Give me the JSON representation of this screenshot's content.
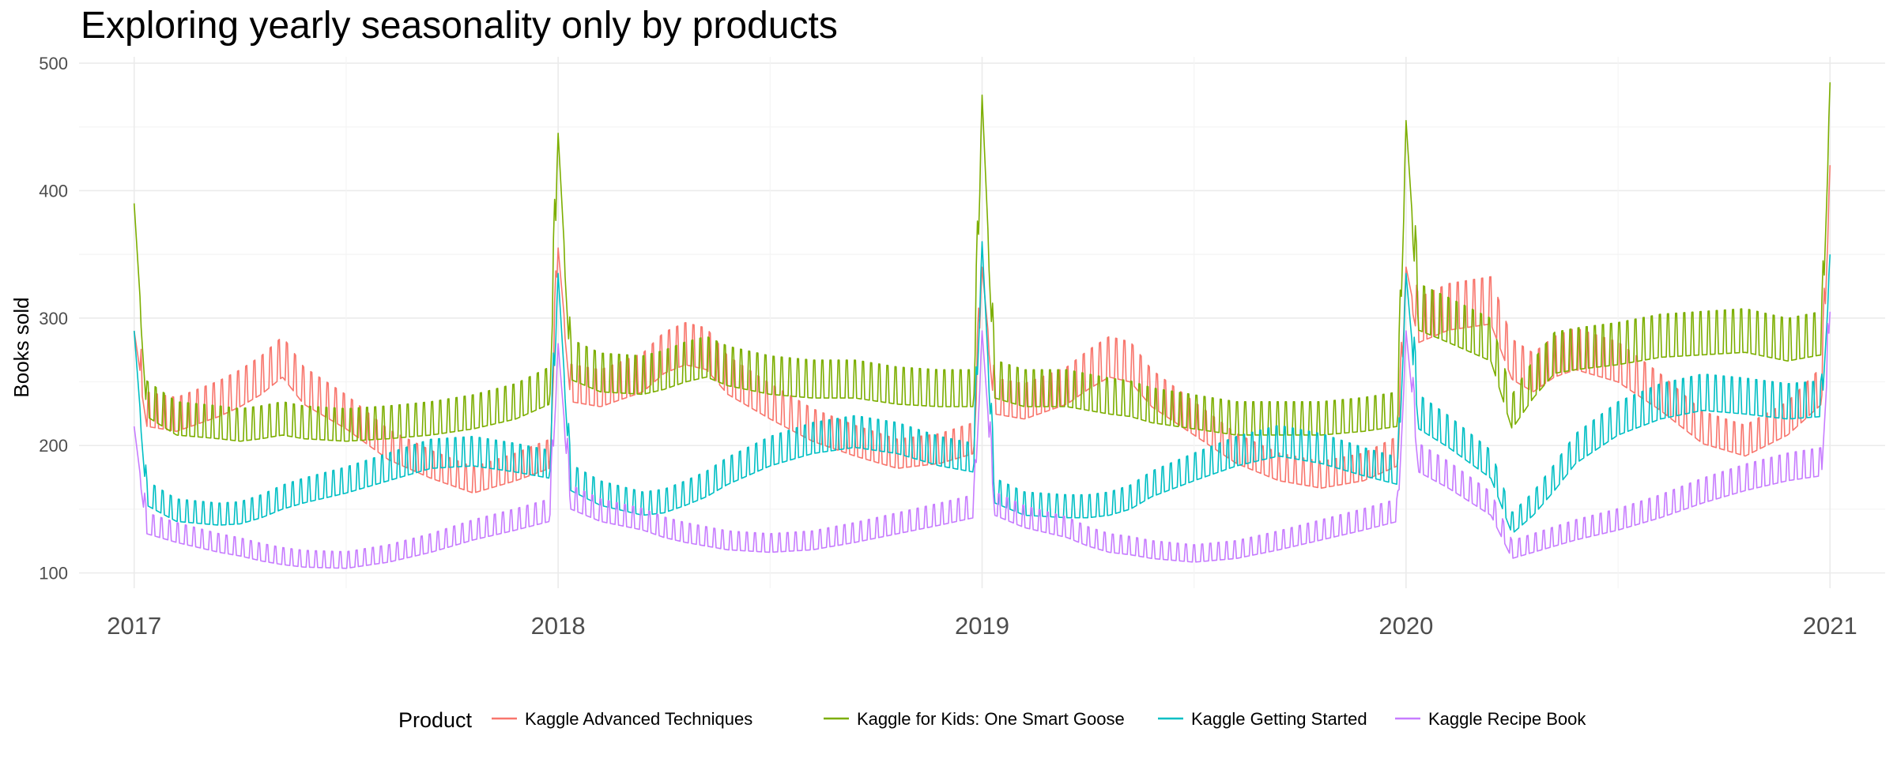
{
  "chart_data": {
    "type": "line",
    "title": "Exploring yearly seasonality only by products",
    "xlabel": "",
    "ylabel": "Books sold",
    "x_ticks": [
      "2017",
      "2018",
      "2019",
      "2020",
      "2021"
    ],
    "y_ticks": [
      100,
      200,
      300,
      400,
      500
    ],
    "xlim": [
      2016.87,
      2021.13
    ],
    "ylim": [
      88,
      505
    ],
    "grid": true,
    "legend": {
      "title": "Product",
      "position": "bottom"
    },
    "x_unit": "year",
    "series": [
      {
        "name": "Kaggle Advanced Techniques",
        "color": "#F8766D",
        "points": [
          [
            2017.0,
            290
          ],
          [
            2017.03,
            222
          ],
          [
            2017.1,
            218
          ],
          [
            2017.2,
            230
          ],
          [
            2017.25,
            238
          ],
          [
            2017.3,
            248
          ],
          [
            2017.35,
            262
          ],
          [
            2017.4,
            240
          ],
          [
            2017.5,
            220
          ],
          [
            2017.6,
            195
          ],
          [
            2017.7,
            180
          ],
          [
            2017.8,
            168
          ],
          [
            2017.9,
            178
          ],
          [
            2017.98,
            188
          ],
          [
            2018.0,
            355
          ],
          [
            2018.03,
            242
          ],
          [
            2018.1,
            238
          ],
          [
            2018.2,
            250
          ],
          [
            2018.25,
            265
          ],
          [
            2018.3,
            272
          ],
          [
            2018.35,
            268
          ],
          [
            2018.4,
            248
          ],
          [
            2018.5,
            228
          ],
          [
            2018.6,
            210
          ],
          [
            2018.7,
            198
          ],
          [
            2018.8,
            188
          ],
          [
            2018.9,
            192
          ],
          [
            2018.98,
            200
          ],
          [
            2019.0,
            340
          ],
          [
            2019.03,
            232
          ],
          [
            2019.1,
            228
          ],
          [
            2019.2,
            240
          ],
          [
            2019.25,
            252
          ],
          [
            2019.3,
            262
          ],
          [
            2019.35,
            258
          ],
          [
            2019.4,
            238
          ],
          [
            2019.5,
            215
          ],
          [
            2019.6,
            192
          ],
          [
            2019.7,
            178
          ],
          [
            2019.8,
            172
          ],
          [
            2019.9,
            178
          ],
          [
            2019.98,
            190
          ],
          [
            2020.0,
            340
          ],
          [
            2020.03,
            290
          ],
          [
            2020.1,
            300
          ],
          [
            2020.2,
            305
          ],
          [
            2020.25,
            260
          ],
          [
            2020.3,
            250
          ],
          [
            2020.35,
            262
          ],
          [
            2020.4,
            268
          ],
          [
            2020.5,
            258
          ],
          [
            2020.6,
            235
          ],
          [
            2020.7,
            208
          ],
          [
            2020.8,
            198
          ],
          [
            2020.9,
            215
          ],
          [
            2020.98,
            240
          ],
          [
            2021.0,
            420
          ]
        ]
      },
      {
        "name": "Kaggle for Kids: One Smart Goose",
        "color": "#7CAE00",
        "points": [
          [
            2017.0,
            390
          ],
          [
            2017.03,
            230
          ],
          [
            2017.1,
            215
          ],
          [
            2017.2,
            212
          ],
          [
            2017.25,
            210
          ],
          [
            2017.3,
            212
          ],
          [
            2017.35,
            215
          ],
          [
            2017.4,
            212
          ],
          [
            2017.5,
            210
          ],
          [
            2017.6,
            212
          ],
          [
            2017.7,
            215
          ],
          [
            2017.8,
            220
          ],
          [
            2017.9,
            228
          ],
          [
            2017.98,
            240
          ],
          [
            2018.0,
            445
          ],
          [
            2018.03,
            260
          ],
          [
            2018.1,
            250
          ],
          [
            2018.2,
            248
          ],
          [
            2018.25,
            252
          ],
          [
            2018.3,
            258
          ],
          [
            2018.35,
            262
          ],
          [
            2018.4,
            255
          ],
          [
            2018.5,
            248
          ],
          [
            2018.6,
            245
          ],
          [
            2018.7,
            245
          ],
          [
            2018.8,
            240
          ],
          [
            2018.9,
            238
          ],
          [
            2018.98,
            238
          ],
          [
            2019.0,
            475
          ],
          [
            2019.03,
            245
          ],
          [
            2019.1,
            238
          ],
          [
            2019.2,
            238
          ],
          [
            2019.25,
            235
          ],
          [
            2019.3,
            232
          ],
          [
            2019.35,
            230
          ],
          [
            2019.4,
            225
          ],
          [
            2019.5,
            220
          ],
          [
            2019.6,
            215
          ],
          [
            2019.7,
            215
          ],
          [
            2019.8,
            215
          ],
          [
            2019.9,
            218
          ],
          [
            2019.98,
            222
          ],
          [
            2020.0,
            455
          ],
          [
            2020.03,
            300
          ],
          [
            2020.1,
            290
          ],
          [
            2020.2,
            275
          ],
          [
            2020.25,
            220
          ],
          [
            2020.3,
            245
          ],
          [
            2020.35,
            265
          ],
          [
            2020.4,
            268
          ],
          [
            2020.5,
            272
          ],
          [
            2020.6,
            278
          ],
          [
            2020.7,
            280
          ],
          [
            2020.8,
            282
          ],
          [
            2020.9,
            275
          ],
          [
            2020.98,
            280
          ],
          [
            2021.0,
            485
          ]
        ]
      },
      {
        "name": "Kaggle Getting Started",
        "color": "#00BFC4",
        "points": [
          [
            2017.0,
            290
          ],
          [
            2017.03,
            158
          ],
          [
            2017.1,
            145
          ],
          [
            2017.2,
            142
          ],
          [
            2017.25,
            143
          ],
          [
            2017.3,
            148
          ],
          [
            2017.35,
            155
          ],
          [
            2017.4,
            160
          ],
          [
            2017.5,
            168
          ],
          [
            2017.6,
            178
          ],
          [
            2017.7,
            188
          ],
          [
            2017.8,
            190
          ],
          [
            2017.9,
            185
          ],
          [
            2017.98,
            180
          ],
          [
            2018.0,
            335
          ],
          [
            2018.03,
            170
          ],
          [
            2018.1,
            158
          ],
          [
            2018.2,
            150
          ],
          [
            2018.25,
            152
          ],
          [
            2018.3,
            158
          ],
          [
            2018.35,
            165
          ],
          [
            2018.4,
            175
          ],
          [
            2018.5,
            190
          ],
          [
            2018.6,
            200
          ],
          [
            2018.7,
            205
          ],
          [
            2018.8,
            200
          ],
          [
            2018.9,
            190
          ],
          [
            2018.98,
            185
          ],
          [
            2019.0,
            360
          ],
          [
            2019.03,
            160
          ],
          [
            2019.1,
            150
          ],
          [
            2019.2,
            148
          ],
          [
            2019.25,
            148
          ],
          [
            2019.3,
            150
          ],
          [
            2019.35,
            155
          ],
          [
            2019.4,
            165
          ],
          [
            2019.5,
            178
          ],
          [
            2019.6,
            190
          ],
          [
            2019.7,
            198
          ],
          [
            2019.8,
            192
          ],
          [
            2019.9,
            182
          ],
          [
            2019.98,
            175
          ],
          [
            2020.0,
            335
          ],
          [
            2020.03,
            220
          ],
          [
            2020.1,
            205
          ],
          [
            2020.2,
            180
          ],
          [
            2020.25,
            135
          ],
          [
            2020.3,
            150
          ],
          [
            2020.35,
            170
          ],
          [
            2020.4,
            192
          ],
          [
            2020.5,
            215
          ],
          [
            2020.6,
            228
          ],
          [
            2020.7,
            235
          ],
          [
            2020.8,
            232
          ],
          [
            2020.9,
            228
          ],
          [
            2020.98,
            230
          ],
          [
            2021.0,
            350
          ]
        ]
      },
      {
        "name": "Kaggle Recipe Book",
        "color": "#C77CFF",
        "points": [
          [
            2017.0,
            215
          ],
          [
            2017.03,
            135
          ],
          [
            2017.1,
            128
          ],
          [
            2017.2,
            120
          ],
          [
            2017.25,
            117
          ],
          [
            2017.3,
            113
          ],
          [
            2017.35,
            110
          ],
          [
            2017.4,
            108
          ],
          [
            2017.5,
            107
          ],
          [
            2017.6,
            112
          ],
          [
            2017.7,
            120
          ],
          [
            2017.8,
            130
          ],
          [
            2017.9,
            138
          ],
          [
            2017.98,
            145
          ],
          [
            2018.0,
            280
          ],
          [
            2018.03,
            155
          ],
          [
            2018.1,
            145
          ],
          [
            2018.2,
            138
          ],
          [
            2018.25,
            132
          ],
          [
            2018.3,
            128
          ],
          [
            2018.35,
            125
          ],
          [
            2018.4,
            122
          ],
          [
            2018.5,
            120
          ],
          [
            2018.6,
            122
          ],
          [
            2018.7,
            128
          ],
          [
            2018.8,
            135
          ],
          [
            2018.9,
            142
          ],
          [
            2018.98,
            148
          ],
          [
            2019.0,
            290
          ],
          [
            2019.03,
            150
          ],
          [
            2019.1,
            140
          ],
          [
            2019.2,
            132
          ],
          [
            2019.25,
            125
          ],
          [
            2019.3,
            120
          ],
          [
            2019.35,
            118
          ],
          [
            2019.4,
            115
          ],
          [
            2019.5,
            112
          ],
          [
            2019.6,
            115
          ],
          [
            2019.7,
            122
          ],
          [
            2019.8,
            130
          ],
          [
            2019.9,
            138
          ],
          [
            2019.98,
            145
          ],
          [
            2020.0,
            290
          ],
          [
            2020.03,
            185
          ],
          [
            2020.1,
            172
          ],
          [
            2020.2,
            150
          ],
          [
            2020.25,
            115
          ],
          [
            2020.3,
            120
          ],
          [
            2020.35,
            125
          ],
          [
            2020.4,
            130
          ],
          [
            2020.5,
            138
          ],
          [
            2020.6,
            148
          ],
          [
            2020.7,
            160
          ],
          [
            2020.8,
            170
          ],
          [
            2020.9,
            178
          ],
          [
            2020.98,
            182
          ],
          [
            2021.0,
            305
          ]
        ]
      }
    ]
  }
}
